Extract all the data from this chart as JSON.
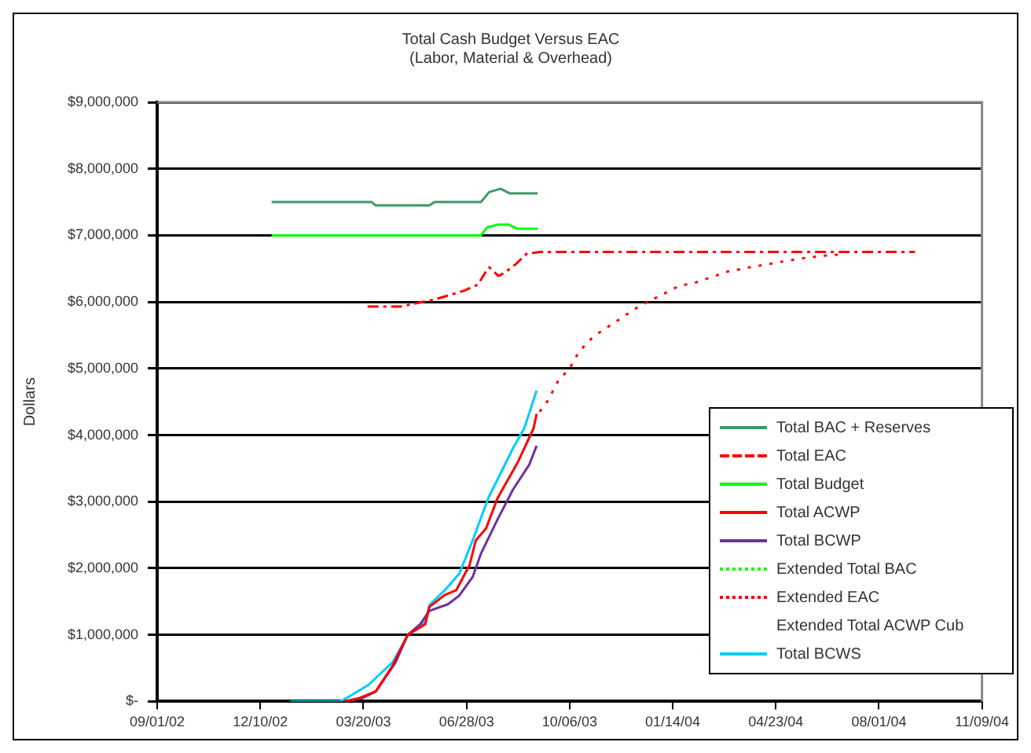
{
  "chart_data": {
    "type": "line",
    "title": "Total Cash Budget Versus EAC",
    "subtitle": "(Labor, Material & Overhead)",
    "ylabel": "Dollars",
    "xlim": [
      "2002-09-01",
      "2004-11-09"
    ],
    "xticks": [
      {
        "value": "2002-09-01",
        "label": "09/01/02"
      },
      {
        "value": "2002-12-10",
        "label": "12/10/02"
      },
      {
        "value": "2003-03-20",
        "label": "03/20/03"
      },
      {
        "value": "2003-06-28",
        "label": "06/28/03"
      },
      {
        "value": "2003-10-06",
        "label": "10/06/03"
      },
      {
        "value": "2004-01-14",
        "label": "01/14/04"
      },
      {
        "value": "2004-04-23",
        "label": "04/23/04"
      },
      {
        "value": "2004-08-01",
        "label": "08/01/04"
      },
      {
        "value": "2004-11-09",
        "label": "11/09/04"
      }
    ],
    "ylim": [
      0,
      9000000
    ],
    "yticks": [
      {
        "value": 0,
        "label": "$-"
      },
      {
        "value": 1000000,
        "label": "$1,000,000"
      },
      {
        "value": 2000000,
        "label": "$2,000,000"
      },
      {
        "value": 3000000,
        "label": "$3,000,000"
      },
      {
        "value": 4000000,
        "label": "$4,000,000"
      },
      {
        "value": 5000000,
        "label": "$5,000,000"
      },
      {
        "value": 6000000,
        "label": "$6,000,000"
      },
      {
        "value": 7000000,
        "label": "$7,000,000"
      },
      {
        "value": 8000000,
        "label": "$8,000,000"
      },
      {
        "value": 9000000,
        "label": "$9,000,000"
      }
    ],
    "grid": "y",
    "legend": "right",
    "marker": "none",
    "series": [
      {
        "name": "Total BAC + Reserves",
        "color": "#3a9a6a",
        "x": [
          "2002-12-21",
          "2003-03-28",
          "2003-04-01",
          "2003-05-23",
          "2003-05-28",
          "2003-07-12",
          "2003-07-20",
          "2003-07-31",
          "2003-08-09",
          "2003-09-05"
        ],
        "values": [
          7500000,
          7500000,
          7450000,
          7450000,
          7500000,
          7500000,
          7650000,
          7700000,
          7630000,
          7630000
        ]
      },
      {
        "name": "Total EAC",
        "color": "#ff0000",
        "line_style": "dashed",
        "x": [
          "2003-03-24",
          "2003-04-25",
          "2003-05-29",
          "2003-06-26",
          "2003-07-09",
          "2003-07-17",
          "2003-07-20",
          "2003-07-29",
          "2003-08-04",
          "2003-08-15",
          "2003-08-25",
          "2003-09-07",
          "2004-09-05"
        ],
        "values": [
          5930000,
          5930000,
          6040000,
          6170000,
          6260000,
          6460000,
          6520000,
          6390000,
          6440000,
          6570000,
          6720000,
          6750000,
          6750000
        ]
      },
      {
        "name": "Total Budget",
        "color": "#00ff00",
        "x": [
          "2002-12-21",
          "2003-07-12",
          "2003-07-18",
          "2003-07-28",
          "2003-08-08",
          "2003-08-16",
          "2003-09-05"
        ],
        "values": [
          7000000,
          7000000,
          7120000,
          7160000,
          7160000,
          7100000,
          7100000
        ]
      },
      {
        "name": "Total ACWP",
        "color": "#ff0000",
        "x": [
          "2003-03-01",
          "2003-03-16",
          "2003-04-01",
          "2003-04-17",
          "2003-05-02",
          "2003-05-19",
          "2003-05-23",
          "2003-06-07",
          "2003-06-18",
          "2003-07-01",
          "2003-07-07",
          "2003-07-17",
          "2003-07-28",
          "2003-08-17",
          "2003-09-01",
          "2003-09-04"
        ],
        "values": [
          0,
          50000,
          150000,
          530000,
          1000000,
          1160000,
          1420000,
          1600000,
          1670000,
          2050000,
          2420000,
          2600000,
          3050000,
          3600000,
          4100000,
          4320000
        ]
      },
      {
        "name": "Total BCWP",
        "color": "#7030a0",
        "x": [
          "2003-03-01",
          "2003-03-19",
          "2003-04-01",
          "2003-04-20",
          "2003-05-02",
          "2003-05-14",
          "2003-05-23",
          "2003-06-10",
          "2003-06-21",
          "2003-07-04",
          "2003-07-12",
          "2003-07-28",
          "2003-08-12",
          "2003-08-28",
          "2003-09-04"
        ],
        "values": [
          0,
          50000,
          150000,
          580000,
          1000000,
          1160000,
          1360000,
          1460000,
          1590000,
          1870000,
          2220000,
          2730000,
          3180000,
          3560000,
          3840000
        ]
      },
      {
        "name": "Extended Total BAC",
        "color": "#00ff00",
        "line_style": "dotted"
      },
      {
        "name": "Extended EAC",
        "color": "#ff0000",
        "line_style": "dotted",
        "x": [
          "2003-09-07",
          "2003-09-15",
          "2003-09-25",
          "2003-10-06",
          "2003-10-15",
          "2003-10-29",
          "2003-12-12",
          "2004-01-14",
          "2004-01-20",
          "2004-02-05",
          "2004-03-08",
          "2004-03-29",
          "2004-05-12",
          "2004-06-05",
          "2004-06-30"
        ],
        "values": [
          4350000,
          4520000,
          4820000,
          5000000,
          5250000,
          5480000,
          5930000,
          6190000,
          6240000,
          6290000,
          6460000,
          6520000,
          6640000,
          6690000,
          6720000
        ]
      },
      {
        "name": "Extended Total ACWP Cub"
      },
      {
        "name": "Total BCWS",
        "color": "#00ccff",
        "x": [
          "2003-01-08",
          "2003-02-26",
          "2003-03-09",
          "2003-03-25",
          "2003-04-18",
          "2003-05-02",
          "2003-05-19",
          "2003-05-23",
          "2003-06-07",
          "2003-06-21",
          "2003-07-04",
          "2003-07-19",
          "2003-08-12",
          "2003-08-23",
          "2003-09-04"
        ],
        "values": [
          0,
          0,
          100000,
          250000,
          600000,
          1000000,
          1200000,
          1450000,
          1670000,
          1920000,
          2420000,
          3050000,
          3800000,
          4100000,
          4670000
        ]
      }
    ]
  }
}
